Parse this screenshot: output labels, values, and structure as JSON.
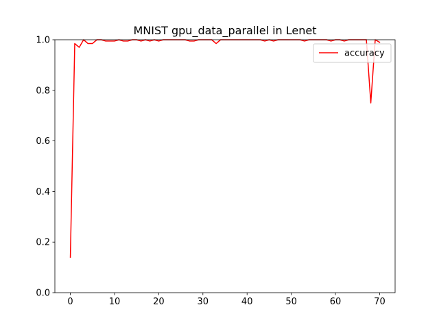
{
  "chart_data": {
    "type": "line",
    "title": "MNIST gpu_data_parallel in Lenet",
    "xlabel": "",
    "ylabel": "",
    "xlim": [
      -3.5,
      73.5
    ],
    "ylim": [
      0.0,
      1.0
    ],
    "xticks": [
      0,
      10,
      20,
      30,
      40,
      50,
      60,
      70
    ],
    "yticks": [
      0.0,
      0.2,
      0.4,
      0.6,
      0.8,
      1.0
    ],
    "xtick_labels": [
      "0",
      "10",
      "20",
      "30",
      "40",
      "50",
      "60",
      "70"
    ],
    "ytick_labels": [
      "0.0",
      "0.2",
      "0.4",
      "0.6",
      "0.8",
      "1.0"
    ],
    "grid": false,
    "legend_position": "top-right",
    "series": [
      {
        "name": "accuracy",
        "color": "#ff0000",
        "x": [
          0,
          1,
          2,
          3,
          4,
          5,
          6,
          7,
          8,
          9,
          10,
          11,
          12,
          13,
          14,
          15,
          16,
          17,
          18,
          19,
          20,
          21,
          22,
          23,
          24,
          25,
          26,
          27,
          28,
          29,
          30,
          31,
          32,
          33,
          34,
          35,
          36,
          37,
          38,
          39,
          40,
          41,
          42,
          43,
          44,
          45,
          46,
          47,
          48,
          49,
          50,
          51,
          52,
          53,
          54,
          55,
          56,
          57,
          58,
          59,
          60,
          61,
          62,
          63,
          64,
          65,
          66,
          67,
          68,
          69,
          70
        ],
        "values": [
          0.14,
          0.985,
          0.97,
          1.0,
          0.985,
          0.985,
          1.0,
          1.0,
          0.995,
          0.995,
          0.995,
          1.0,
          0.995,
          0.995,
          1.0,
          1.0,
          0.995,
          1.0,
          0.995,
          1.0,
          0.995,
          1.0,
          1.0,
          1.0,
          1.0,
          1.0,
          1.0,
          0.995,
          0.995,
          1.0,
          1.0,
          1.0,
          1.0,
          0.985,
          1.0,
          1.0,
          1.0,
          1.0,
          1.0,
          1.0,
          1.0,
          1.0,
          1.0,
          1.0,
          0.995,
          1.0,
          0.995,
          1.0,
          1.0,
          1.0,
          1.0,
          1.0,
          1.0,
          0.995,
          1.0,
          1.0,
          1.0,
          1.0,
          1.0,
          0.995,
          1.0,
          1.0,
          0.995,
          1.0,
          1.0,
          1.0,
          1.0,
          1.0,
          0.75,
          1.0,
          0.99
        ]
      }
    ]
  }
}
